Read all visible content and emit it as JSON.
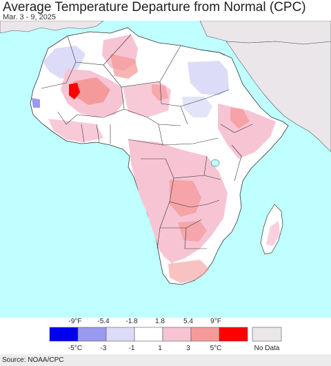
{
  "header": {
    "title": "Average Temperature Departure from Normal (CPC)",
    "date_range": "Mar. 3 - 9, 2025"
  },
  "legend": {
    "fahrenheit_labels": [
      "-9°F",
      "-5.4",
      "-1.8",
      "1.8",
      "5.4",
      "9°F"
    ],
    "celsius_labels": [
      "-5°C",
      "-3",
      "-1",
      "1",
      "3",
      "5°C"
    ],
    "colors": [
      "#0000ee",
      "#9a9af0",
      "#dcdcf8",
      "#ffffff",
      "#f7c4d4",
      "#f59a9a",
      "#ff0000"
    ],
    "no_data_label": "No Data",
    "no_data_color": "#eae6ea"
  },
  "map": {
    "ocean_color": "#bfffff",
    "land_color": "#ffffff",
    "no_data_region": "Arabian Peninsula / Middle East"
  },
  "footer": {
    "source": "Source: NOAA/CPC"
  }
}
